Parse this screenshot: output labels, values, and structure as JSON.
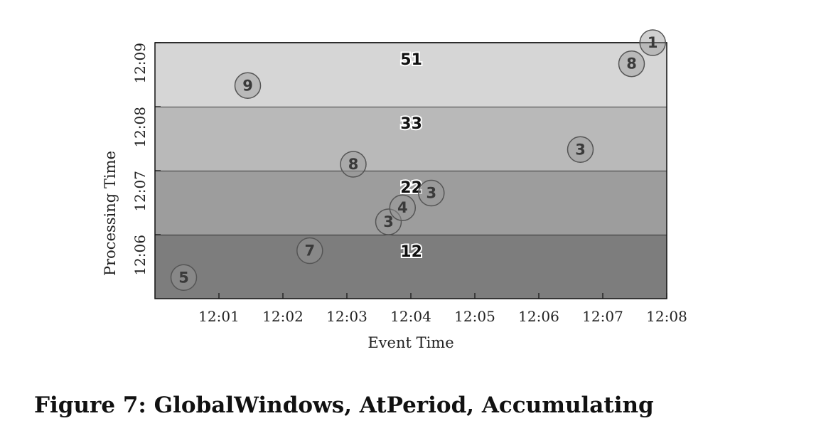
{
  "caption": "Figure 7: GlobalWindows, AtPeriod, Accumulating",
  "chart_data": {
    "type": "scatter",
    "xlabel": "Event Time",
    "ylabel": "Processing Time",
    "x_unit": "minutes after 12:00",
    "y_unit": "minutes after 12:05",
    "xlim": [
      0,
      8
    ],
    "ylim": [
      0,
      4
    ],
    "x_ticks": [
      {
        "value": 1,
        "label": "12:01"
      },
      {
        "value": 2,
        "label": "12:02"
      },
      {
        "value": 3,
        "label": "12:03"
      },
      {
        "value": 4,
        "label": "12:04"
      },
      {
        "value": 5,
        "label": "12:05"
      },
      {
        "value": 6,
        "label": "12:06"
      },
      {
        "value": 7,
        "label": "12:07"
      },
      {
        "value": 8,
        "label": "12:08"
      }
    ],
    "y_ticks": [
      {
        "value": 1,
        "label": "12:06"
      },
      {
        "value": 2,
        "label": "12:07"
      },
      {
        "value": 3,
        "label": "12:08"
      },
      {
        "value": 4,
        "label": "12:09"
      }
    ],
    "bands": [
      {
        "y0": 0,
        "y1": 1,
        "label": "12",
        "color": "#7d7d7d"
      },
      {
        "y0": 1,
        "y1": 2,
        "label": "22",
        "color": "#9d9d9d"
      },
      {
        "y0": 2,
        "y1": 3,
        "label": "33",
        "color": "#b9b9b9"
      },
      {
        "y0": 3,
        "y1": 4,
        "label": "51",
        "color": "#d6d6d6"
      }
    ],
    "points": [
      {
        "x": 0.45,
        "y": 0.33,
        "value": "5"
      },
      {
        "x": 2.42,
        "y": 0.75,
        "value": "7"
      },
      {
        "x": 3.65,
        "y": 1.2,
        "value": "3"
      },
      {
        "x": 3.87,
        "y": 1.42,
        "value": "4"
      },
      {
        "x": 4.32,
        "y": 1.65,
        "value": "3"
      },
      {
        "x": 3.1,
        "y": 2.1,
        "value": "8"
      },
      {
        "x": 6.65,
        "y": 2.33,
        "value": "3"
      },
      {
        "x": 1.45,
        "y": 3.33,
        "value": "9"
      },
      {
        "x": 7.45,
        "y": 3.67,
        "value": "8"
      },
      {
        "x": 7.78,
        "y": 4.0,
        "value": "1"
      }
    ],
    "grid": false,
    "legend": "none"
  }
}
